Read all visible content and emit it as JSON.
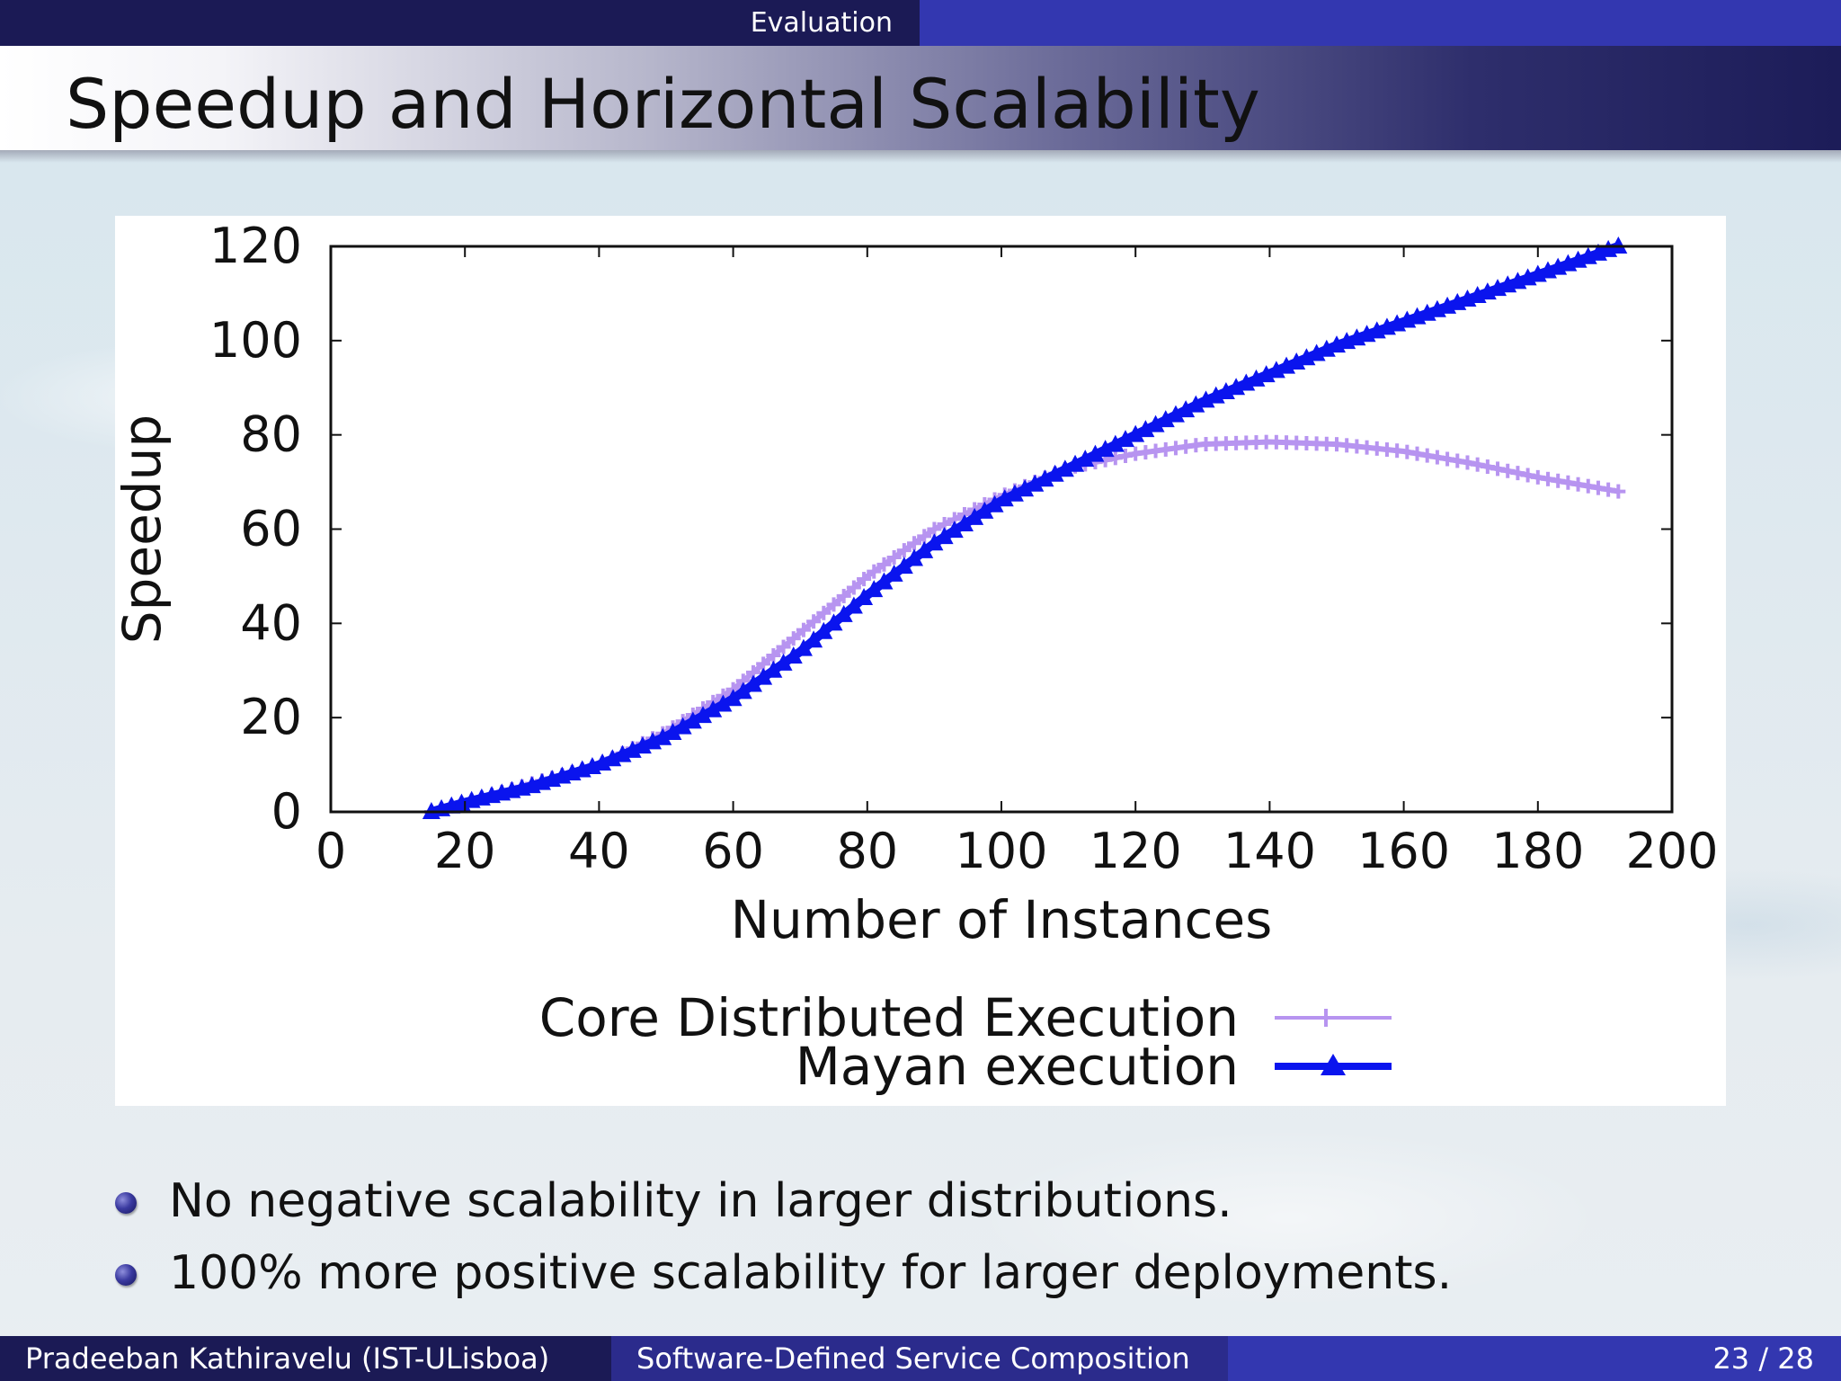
{
  "header": {
    "section": "Evaluation"
  },
  "slide": {
    "title": "Speedup and Horizontal Scalability"
  },
  "bullets": [
    "No negative scalability in larger distributions.",
    "100% more positive scalability for larger deployments."
  ],
  "footer": {
    "author": "Pradeeban Kathiravelu (IST-ULisboa)",
    "talk": "Software-Defined Service Composition",
    "page": "23 / 28"
  },
  "colors": {
    "core": "#b794f0",
    "mayan": "#0a14ee",
    "title_bar": "#1b1a55",
    "footer_accent": "#3337b0"
  },
  "chart_data": {
    "type": "line",
    "title": "",
    "xlabel": "Number of Instances",
    "ylabel": "Speedup",
    "xlim": [
      0,
      200
    ],
    "ylim": [
      0,
      120
    ],
    "xticks": [
      0,
      20,
      40,
      60,
      80,
      100,
      120,
      140,
      160,
      180,
      200
    ],
    "yticks": [
      0,
      20,
      40,
      60,
      80,
      100,
      120
    ],
    "grid": false,
    "legend_position": "bottom-center",
    "series": [
      {
        "name": "Core Distributed Execution",
        "marker": "plus",
        "x": [
          15,
          20,
          30,
          40,
          50,
          60,
          70,
          80,
          90,
          100,
          110,
          120,
          130,
          140,
          150,
          160,
          170,
          180,
          192
        ],
        "y": [
          0,
          2,
          6,
          10,
          17,
          26,
          38,
          50,
          60,
          67,
          73,
          76,
          78,
          78.5,
          78,
          76.5,
          74,
          71,
          68
        ]
      },
      {
        "name": "Mayan execution",
        "marker": "triangle",
        "x": [
          15,
          20,
          30,
          40,
          50,
          60,
          70,
          80,
          90,
          100,
          110,
          120,
          130,
          140,
          150,
          160,
          170,
          180,
          192
        ],
        "y": [
          0,
          2,
          5.5,
          10,
          16,
          24,
          34,
          46,
          57,
          66,
          73,
          80,
          87,
          93,
          99,
          104,
          109,
          114,
          120
        ]
      }
    ]
  }
}
